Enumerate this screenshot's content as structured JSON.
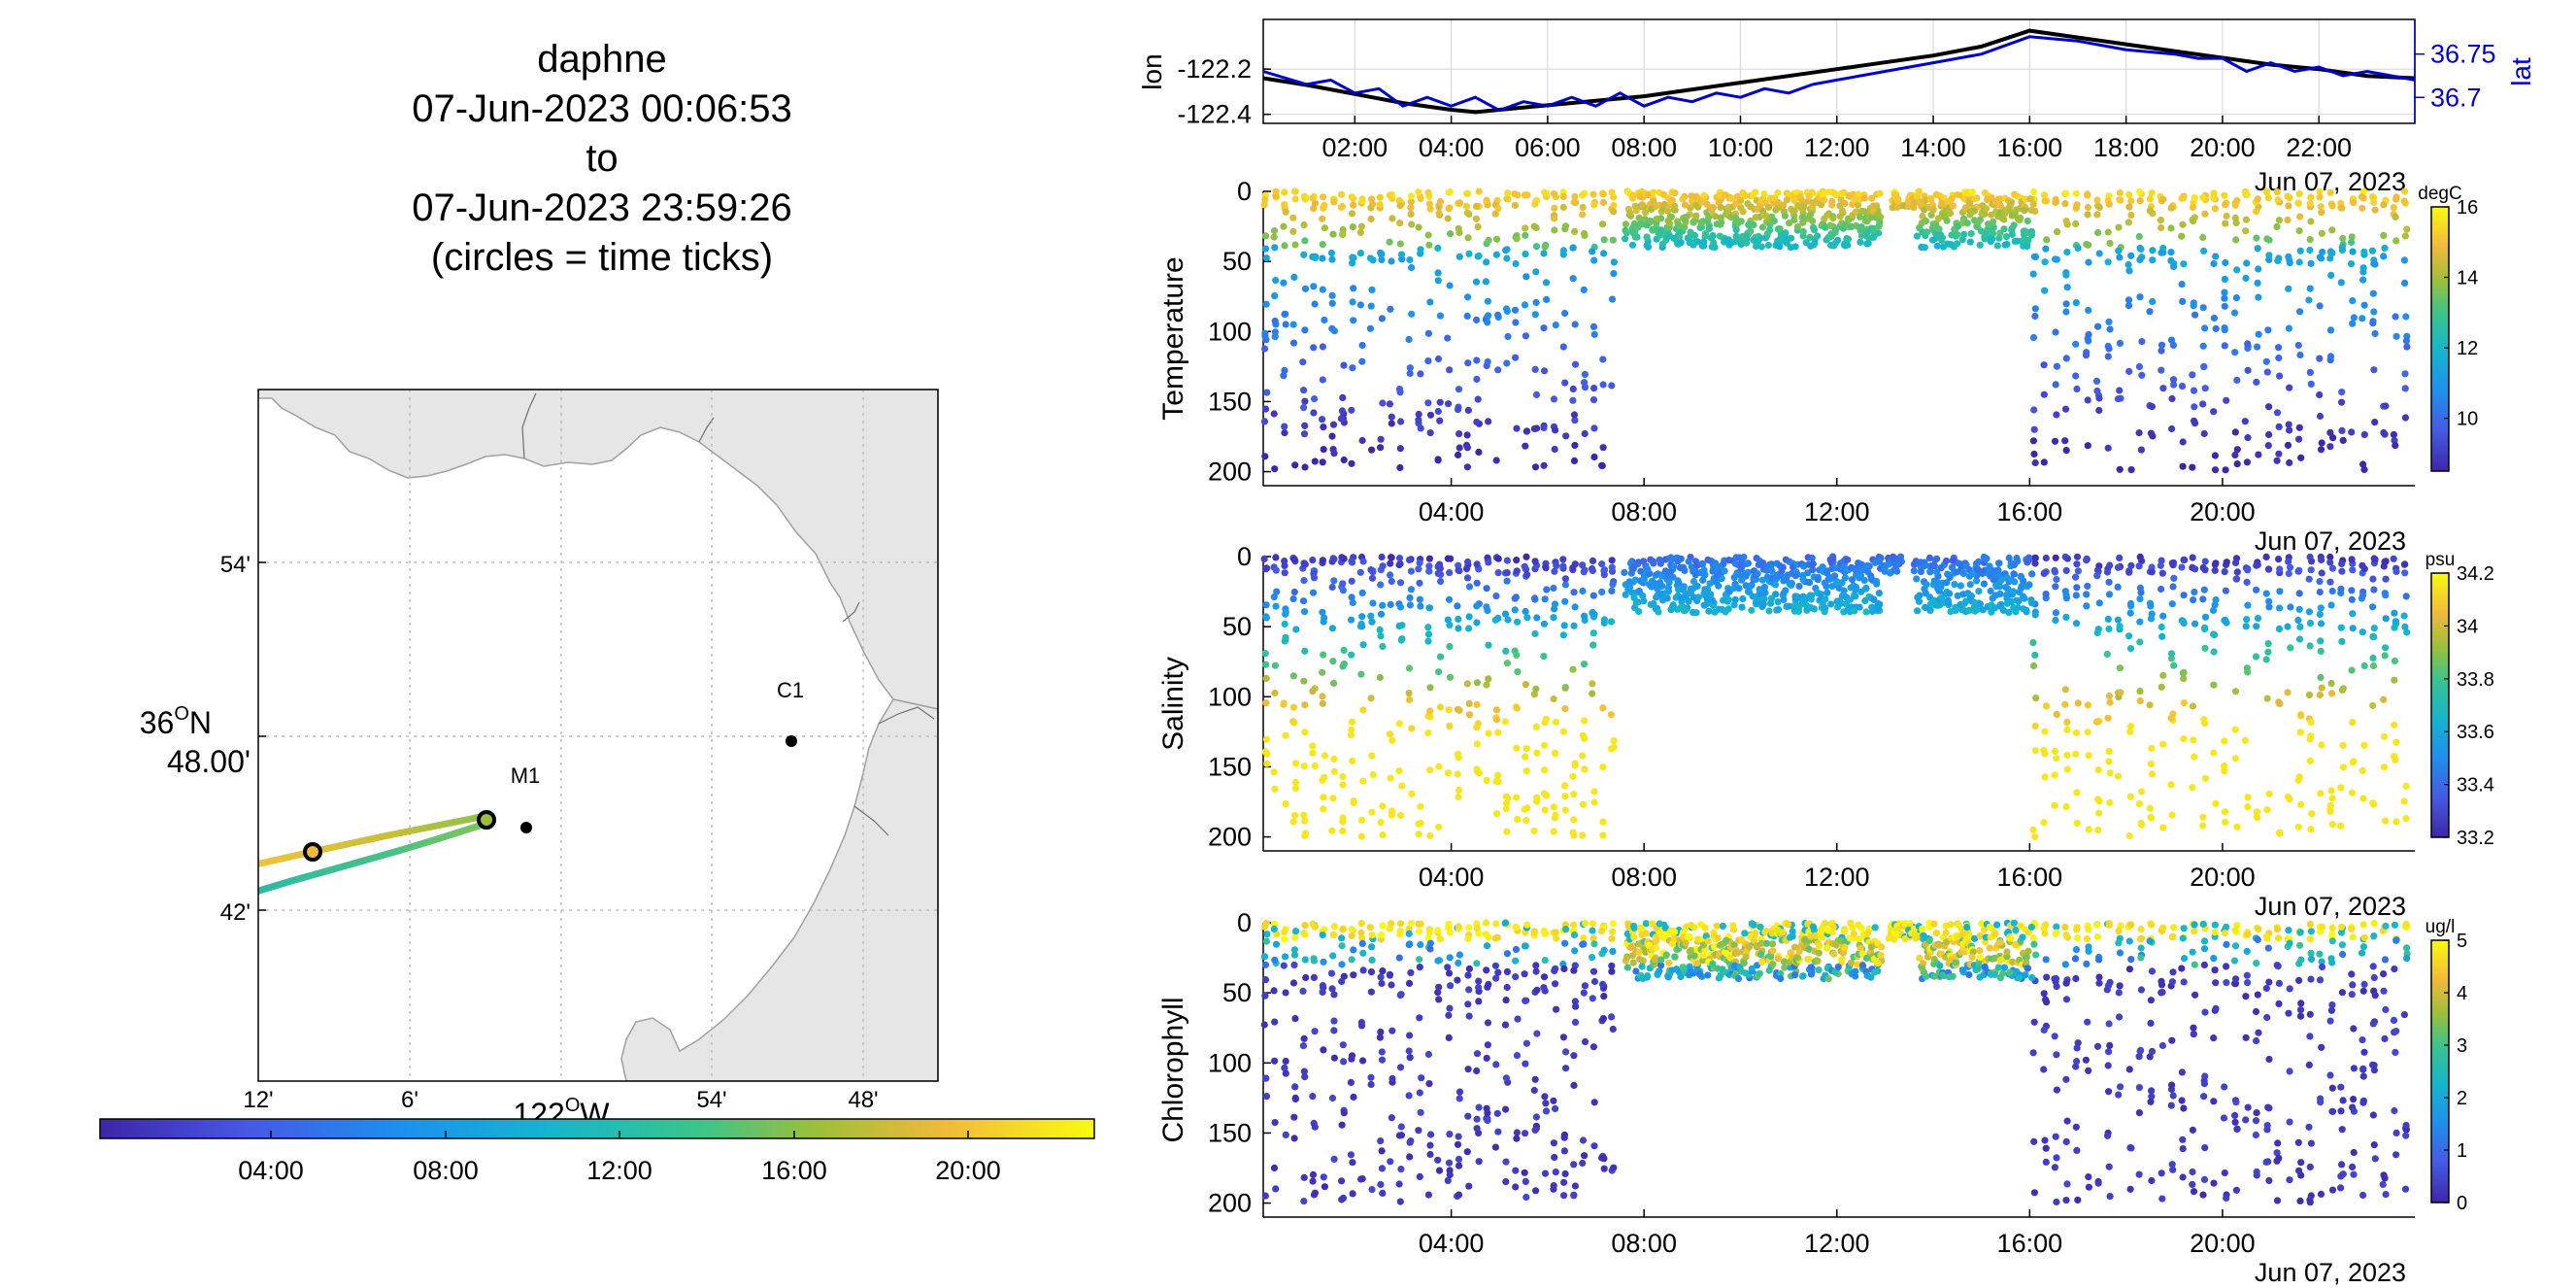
{
  "header": {
    "vehicle": "daphne",
    "start": "07-Jun-2023 00:06:53",
    "to": "to",
    "end": "07-Jun-2023 23:59:26",
    "note": "(circles = time ticks)"
  },
  "colors": {
    "lon_line": "#000000",
    "lat_line": "#0000cc",
    "land": "#e6e6e6",
    "coast": "#a0a0a0",
    "rivers": "#707070",
    "grid": "#b4b4b4",
    "axis": "#000000"
  },
  "map": {
    "lat_ticks": [
      "54'",
      "36°N 48.00'",
      "42'"
    ],
    "lat_tick_main": "36",
    "lat_tick_main_unit": "O",
    "lat_tick_main_suffix": "N",
    "lat_tick_main_minutes": "48.00'",
    "lon_ticks": [
      "12'",
      "6'",
      "",
      "54'",
      "48'"
    ],
    "lon_main": "122",
    "lon_main_unit": "O",
    "lon_main_suffix": "W",
    "stations": [
      {
        "label": "C1"
      },
      {
        "label": "M1"
      }
    ],
    "time_colorbar_ticks": [
      "04:00",
      "08:00",
      "12:00",
      "16:00",
      "20:00"
    ]
  },
  "chart_data": [
    {
      "type": "line",
      "name": "position",
      "ylabel_left": "lon",
      "ylabel_right": "lat",
      "x_ticks": [
        "02:00",
        "04:00",
        "06:00",
        "08:00",
        "10:00",
        "12:00",
        "14:00",
        "16:00",
        "18:00",
        "20:00",
        "22:00"
      ],
      "x_date_label": "Jun 07, 2023",
      "left_ticks": [
        "-122.2",
        "-122.4"
      ],
      "right_ticks": [
        "36.75",
        "36.7"
      ],
      "xlim_hours": [
        0.1,
        23.99
      ],
      "lon_ylim": [
        -122.44,
        -121.98
      ],
      "lat_ylim": [
        36.67,
        36.79
      ],
      "series": [
        {
          "name": "lon",
          "x": [
            0.1,
            1,
            2,
            3,
            4,
            4.5,
            5,
            6,
            7,
            8,
            9,
            10,
            11,
            12,
            13,
            14,
            15,
            16,
            17,
            18,
            19,
            20,
            21,
            22,
            23,
            23.99
          ],
          "y": [
            -122.24,
            -122.27,
            -122.31,
            -122.35,
            -122.38,
            -122.39,
            -122.38,
            -122.36,
            -122.34,
            -122.32,
            -122.29,
            -122.26,
            -122.23,
            -122.2,
            -122.17,
            -122.14,
            -122.1,
            -122.03,
            -122.06,
            -122.09,
            -122.12,
            -122.15,
            -122.18,
            -122.2,
            -122.23,
            -122.24
          ]
        },
        {
          "name": "lat",
          "x": [
            0.1,
            1,
            1.5,
            2,
            2.5,
            3,
            3.5,
            4,
            4.5,
            5,
            5.5,
            6,
            6.5,
            7,
            7.5,
            8,
            8.5,
            9,
            9.5,
            10,
            10.5,
            11,
            11.5,
            12,
            13,
            14,
            15,
            16,
            17,
            18,
            19,
            19.5,
            20,
            20.5,
            21,
            21.5,
            22,
            22.5,
            23,
            23.5,
            23.99
          ],
          "y": [
            36.73,
            36.715,
            36.72,
            36.705,
            36.71,
            36.69,
            36.7,
            36.69,
            36.7,
            36.685,
            36.695,
            36.69,
            36.7,
            36.69,
            36.705,
            36.69,
            36.7,
            36.695,
            36.705,
            36.7,
            36.71,
            36.705,
            36.715,
            36.72,
            36.73,
            36.74,
            36.75,
            36.77,
            36.765,
            36.755,
            36.75,
            36.745,
            36.745,
            36.73,
            36.74,
            36.73,
            36.735,
            36.725,
            36.73,
            36.725,
            36.72
          ]
        }
      ]
    },
    {
      "type": "scatter",
      "name": "temperature",
      "ylabel": "Temperature",
      "y_ticks": [
        "0",
        "50",
        "100",
        "150",
        "200"
      ],
      "x_ticks": [
        "04:00",
        "08:00",
        "12:00",
        "16:00",
        "20:00"
      ],
      "x_date_label": "Jun 07, 2023",
      "ylim": [
        0,
        210
      ],
      "y_reversed": true,
      "colorbar_unit": "degC",
      "colorbar_ticks": [
        "16",
        "14",
        "12",
        "10"
      ],
      "clim": [
        8.5,
        16
      ]
    },
    {
      "type": "scatter",
      "name": "salinity",
      "ylabel": "Salinity",
      "y_ticks": [
        "0",
        "50",
        "100",
        "150",
        "200"
      ],
      "x_ticks": [
        "04:00",
        "08:00",
        "12:00",
        "16:00",
        "20:00"
      ],
      "x_date_label": "Jun 07, 2023",
      "ylim": [
        0,
        210
      ],
      "y_reversed": true,
      "colorbar_unit": "psu",
      "colorbar_ticks": [
        "34.2",
        "34",
        "33.8",
        "33.6",
        "33.4",
        "33.2"
      ],
      "clim": [
        33.2,
        34.2
      ]
    },
    {
      "type": "scatter",
      "name": "chlorophyll",
      "ylabel": "Chlorophyll",
      "y_ticks": [
        "0",
        "50",
        "100",
        "150",
        "200"
      ],
      "x_ticks": [
        "04:00",
        "08:00",
        "12:00",
        "16:00",
        "20:00"
      ],
      "x_date_label": "Jun 07, 2023",
      "ylim": [
        0,
        210
      ],
      "y_reversed": true,
      "colorbar_unit": "ug/l",
      "colorbar_ticks": [
        "5",
        "4",
        "3",
        "2",
        "1",
        "0"
      ],
      "clim": [
        0,
        5
      ]
    }
  ]
}
